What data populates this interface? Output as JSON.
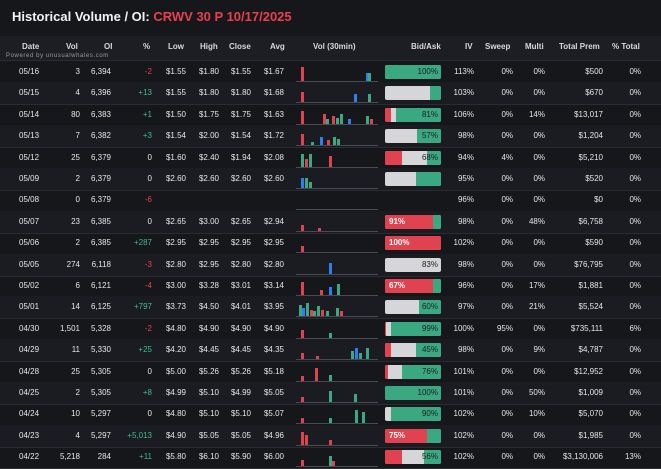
{
  "title": {
    "prefix": "Historical Volume / OI:",
    "contract": "CRWV 30 P 10/17/2025"
  },
  "watermark": "Powered by unusualwhales.com",
  "columns": {
    "date": "Date",
    "vol": "Vol",
    "oi": "OI",
    "chg": "%",
    "low": "Low",
    "high": "High",
    "close": "Close",
    "avg": "Avg",
    "vol30": "Vol (30min)",
    "bidask": "Bid/Ask",
    "iv": "IV",
    "sweep": "Sweep",
    "multi": "Multi",
    "prem": "Total Prem",
    "tot": "% Total"
  },
  "colors": {
    "ask": "#3aa981",
    "bid": "#e0424f",
    "mid": "#d6d6d8",
    "positive": "#3dbd88",
    "negative": "#e8404f",
    "spark_blue": "#2f7ef0"
  },
  "rows": [
    {
      "date": "05/16",
      "vol": "3",
      "oi": "6,394",
      "chg": "-2",
      "low": "$1.55",
      "high": "$1.80",
      "close": "$1.55",
      "avg": "$1.67",
      "bid_fraction": 0,
      "ask_fraction": 1,
      "pct_label": "100%",
      "iv": "113%",
      "sweep": "0%",
      "multi": "0%",
      "prem": "$500",
      "tot": "0%",
      "spark": [
        [
          5,
          0.9,
          "r"
        ],
        [
          70,
          0.5,
          "b"
        ],
        [
          72,
          0.5,
          "g"
        ]
      ]
    },
    {
      "date": "05/15",
      "vol": "4",
      "oi": "6,396",
      "chg": "+13",
      "low": "$1.55",
      "high": "$1.80",
      "close": "$1.80",
      "avg": "$1.68",
      "bid_fraction": 0,
      "ask_fraction": 0.2,
      "pct_label": "",
      "iv": "103%",
      "sweep": "0%",
      "multi": "0%",
      "prem": "$670",
      "tot": "0%",
      "spark": [
        [
          5,
          0.6,
          "r"
        ],
        [
          58,
          0.5,
          "b"
        ],
        [
          72,
          0.5,
          "g"
        ]
      ]
    },
    {
      "date": "05/14",
      "vol": "80",
      "oi": "6,383",
      "chg": "+1",
      "low": "$1.50",
      "high": "$1.75",
      "close": "$1.75",
      "avg": "$1.63",
      "bid_fraction": 0.1,
      "ask_fraction": 0.81,
      "pct_label": "81%",
      "iv": "106%",
      "sweep": "0%",
      "multi": "14%",
      "prem": "$13,017",
      "tot": "0%",
      "spark": [
        [
          5,
          0.8,
          "r"
        ],
        [
          27,
          0.6,
          "r"
        ],
        [
          30,
          0.3,
          "g"
        ],
        [
          36,
          0.5,
          "r"
        ],
        [
          40,
          0.4,
          "g"
        ],
        [
          44,
          0.6,
          "g"
        ],
        [
          52,
          0.3,
          "b"
        ],
        [
          70,
          0.5,
          "g"
        ],
        [
          74,
          0.3,
          "r"
        ]
      ]
    },
    {
      "date": "05/13",
      "vol": "7",
      "oi": "6,382",
      "chg": "+3",
      "low": "$1.54",
      "high": "$2.00",
      "close": "$1.54",
      "avg": "$1.72",
      "bid_fraction": 0,
      "ask_fraction": 0.43,
      "pct_label": "57%",
      "iv": "98%",
      "sweep": "0%",
      "multi": "0%",
      "prem": "$1,204",
      "tot": "0%",
      "spark": [
        [
          5,
          0.7,
          "r"
        ],
        [
          15,
          0.2,
          "g"
        ],
        [
          24,
          0.5,
          "b"
        ],
        [
          31,
          0.3,
          "r"
        ],
        [
          37,
          0.5,
          "g"
        ],
        [
          41,
          0.4,
          "g"
        ]
      ]
    },
    {
      "date": "05/12",
      "vol": "25",
      "oi": "6,379",
      "chg": "0",
      "low": "$1.60",
      "high": "$2.40",
      "close": "$1.94",
      "avg": "$2.08",
      "bid_fraction": 0.3,
      "ask_fraction": 0.25,
      "pct_label": "68%",
      "iv": "94%",
      "sweep": "4%",
      "multi": "0%",
      "prem": "$5,210",
      "tot": "0%",
      "spark": [
        [
          5,
          0.8,
          "g"
        ],
        [
          9,
          0.5,
          "r"
        ],
        [
          13,
          0.8,
          "g"
        ],
        [
          33,
          0.7,
          "r"
        ]
      ]
    },
    {
      "date": "05/09",
      "vol": "2",
      "oi": "6,379",
      "chg": "0",
      "low": "$2.60",
      "high": "$2.60",
      "close": "$2.60",
      "avg": "$2.60",
      "bid_fraction": 0,
      "ask_fraction": 0.45,
      "pct_label": "",
      "iv": "95%",
      "sweep": "0%",
      "multi": "0%",
      "prem": "$520",
      "tot": "0%",
      "spark": [
        [
          5,
          0.6,
          "b"
        ],
        [
          9,
          0.6,
          "g"
        ],
        [
          13,
          0.4,
          "g"
        ]
      ]
    },
    {
      "date": "05/08",
      "vol": "0",
      "oi": "6,379",
      "chg": "-6",
      "low": "",
      "high": "",
      "close": "",
      "avg": "",
      "bid_fraction": 0,
      "ask_fraction": 0,
      "pct_label": "",
      "iv": "96%",
      "sweep": "0%",
      "multi": "0%",
      "prem": "$0",
      "tot": "0%",
      "spark": []
    },
    {
      "date": "05/07",
      "vol": "23",
      "oi": "6,385",
      "chg": "0",
      "low": "$2.65",
      "high": "$3.00",
      "close": "$2.65",
      "avg": "$2.94",
      "bid_fraction": 0.85,
      "ask_fraction": 0.15,
      "pct_label": "91%",
      "dark": true,
      "iv": "98%",
      "sweep": "0%",
      "multi": "48%",
      "prem": "$6,758",
      "tot": "0%",
      "spark": [
        [
          5,
          0.4,
          "r"
        ],
        [
          22,
          0.2,
          "r"
        ]
      ]
    },
    {
      "date": "05/06",
      "vol": "2",
      "oi": "6,385",
      "chg": "+287",
      "low": "$2.95",
      "high": "$2.95",
      "close": "$2.95",
      "avg": "$2.95",
      "bid_fraction": 1,
      "ask_fraction": 0,
      "pct_label": "100%",
      "dark": true,
      "iv": "102%",
      "sweep": "0%",
      "multi": "0%",
      "prem": "$590",
      "tot": "0%",
      "spark": [
        [
          5,
          0.4,
          "r"
        ]
      ]
    },
    {
      "date": "05/05",
      "vol": "274",
      "oi": "6,118",
      "chg": "-3",
      "low": "$2.80",
      "high": "$2.95",
      "close": "$2.80",
      "avg": "$2.80",
      "bid_fraction": 0,
      "ask_fraction": 0,
      "pct_label": "83%",
      "iv": "98%",
      "sweep": "0%",
      "multi": "0%",
      "prem": "$76,795",
      "tot": "0%",
      "spark": [
        [
          33,
          0.7,
          "b"
        ]
      ]
    },
    {
      "date": "05/02",
      "vol": "6",
      "oi": "6,121",
      "chg": "-4",
      "low": "$3.00",
      "high": "$3.28",
      "close": "$3.01",
      "avg": "$3.14",
      "bid_fraction": 0.85,
      "ask_fraction": 0.15,
      "pct_label": "67%",
      "dark": true,
      "iv": "96%",
      "sweep": "0%",
      "multi": "17%",
      "prem": "$1,881",
      "tot": "0%",
      "spark": [
        [
          5,
          0.8,
          "r"
        ],
        [
          24,
          0.3,
          "r"
        ],
        [
          33,
          0.5,
          "b"
        ],
        [
          41,
          0.7,
          "g"
        ]
      ]
    },
    {
      "date": "05/01",
      "vol": "14",
      "oi": "6,125",
      "chg": "+797",
      "low": "$3.73",
      "high": "$4.50",
      "close": "$4.01",
      "avg": "$3.95",
      "bid_fraction": 0,
      "ask_fraction": 0.4,
      "pct_label": "60%",
      "iv": "97%",
      "sweep": "0%",
      "multi": "21%",
      "prem": "$5,524",
      "tot": "0%",
      "spark": [
        [
          3,
          0.7,
          "g"
        ],
        [
          6,
          0.5,
          "b"
        ],
        [
          10,
          0.8,
          "g"
        ],
        [
          14,
          0.4,
          "r"
        ],
        [
          17,
          0.3,
          "g"
        ],
        [
          21,
          0.6,
          "g"
        ],
        [
          25,
          0.4,
          "r"
        ],
        [
          30,
          0.3,
          "g"
        ],
        [
          40,
          0.5,
          "g"
        ],
        [
          44,
          0.3,
          "r"
        ]
      ]
    },
    {
      "date": "04/30",
      "vol": "1,501",
      "oi": "5,328",
      "chg": "-2",
      "low": "$4.80",
      "high": "$4.90",
      "close": "$4.90",
      "avg": "$4.90",
      "bid_fraction": 0.02,
      "ask_fraction": 0.9,
      "pct_label": "99%",
      "iv": "100%",
      "sweep": "95%",
      "multi": "0%",
      "prem": "$735,111",
      "tot": "6%",
      "spark": [
        [
          5,
          0.5,
          "r"
        ],
        [
          33,
          0.3,
          "g"
        ]
      ]
    },
    {
      "date": "04/29",
      "vol": "11",
      "oi": "5,330",
      "chg": "+25",
      "low": "$4.20",
      "high": "$4.45",
      "close": "$4.45",
      "avg": "$4.35",
      "bid_fraction": 0.1,
      "ask_fraction": 0.45,
      "pct_label": "45%",
      "iv": "98%",
      "sweep": "0%",
      "multi": "9%",
      "prem": "$4,787",
      "tot": "0%",
      "spark": [
        [
          5,
          0.4,
          "r"
        ],
        [
          20,
          0.2,
          "r"
        ],
        [
          55,
          0.5,
          "g"
        ],
        [
          59,
          0.7,
          "b"
        ],
        [
          63,
          0.4,
          "g"
        ],
        [
          70,
          0.7,
          "g"
        ]
      ]
    },
    {
      "date": "04/28",
      "vol": "25",
      "oi": "5,305",
      "chg": "0",
      "low": "$5.00",
      "high": "$5.26",
      "close": "$5.26",
      "avg": "$5.18",
      "bid_fraction": 0.05,
      "ask_fraction": 0.7,
      "pct_label": "76%",
      "iv": "101%",
      "sweep": "0%",
      "multi": "0%",
      "prem": "$12,952",
      "tot": "0%",
      "spark": [
        [
          5,
          0.3,
          "r"
        ],
        [
          19,
          0.8,
          "r"
        ],
        [
          33,
          0.4,
          "g"
        ]
      ]
    },
    {
      "date": "04/25",
      "vol": "2",
      "oi": "5,305",
      "chg": "+8",
      "low": "$4.99",
      "high": "$5.10",
      "close": "$4.99",
      "avg": "$5.05",
      "bid_fraction": 0,
      "ask_fraction": 1,
      "pct_label": "100%",
      "iv": "101%",
      "sweep": "0%",
      "multi": "50%",
      "prem": "$1,009",
      "tot": "0%",
      "spark": [
        [
          5,
          0.3,
          "r"
        ],
        [
          33,
          0.7,
          "g"
        ],
        [
          58,
          0.5,
          "g"
        ]
      ]
    },
    {
      "date": "04/24",
      "vol": "10",
      "oi": "5,297",
      "chg": "0",
      "low": "$4.80",
      "high": "$5.10",
      "close": "$5.10",
      "avg": "$5.07",
      "bid_fraction": 0,
      "ask_fraction": 0.9,
      "pct_label": "90%",
      "iv": "102%",
      "sweep": "0%",
      "multi": "10%",
      "prem": "$5,070",
      "tot": "0%",
      "spark": [
        [
          5,
          0.3,
          "r"
        ],
        [
          33,
          0.3,
          "g"
        ],
        [
          59,
          0.8,
          "g"
        ],
        [
          66,
          0.7,
          "g"
        ]
      ]
    },
    {
      "date": "04/23",
      "vol": "4",
      "oi": "5,297",
      "chg": "+5,013",
      "low": "$4.90",
      "high": "$5.05",
      "close": "$5.05",
      "avg": "$4.96",
      "bid_fraction": 0.75,
      "ask_fraction": 0.25,
      "pct_label": "75%",
      "dark": true,
      "iv": "102%",
      "sweep": "0%",
      "multi": "0%",
      "prem": "$1,985",
      "tot": "0%",
      "spark": [
        [
          5,
          0.8,
          "r"
        ],
        [
          9,
          0.6,
          "r"
        ],
        [
          33,
          0.3,
          "r"
        ]
      ]
    },
    {
      "date": "04/22",
      "vol": "5,218",
      "oi": "284",
      "chg": "+11",
      "low": "$5.80",
      "high": "$6.10",
      "close": "$5.90",
      "avg": "$6.00",
      "bid_fraction": 0.3,
      "ask_fraction": 0.3,
      "pct_label": "56%",
      "iv": "102%",
      "sweep": "0%",
      "multi": "0%",
      "prem": "$3,130,006",
      "tot": "13%",
      "spark": [
        [
          5,
          0.4,
          "r"
        ],
        [
          33,
          0.6,
          "g"
        ],
        [
          36,
          0.3,
          "r"
        ]
      ]
    }
  ]
}
